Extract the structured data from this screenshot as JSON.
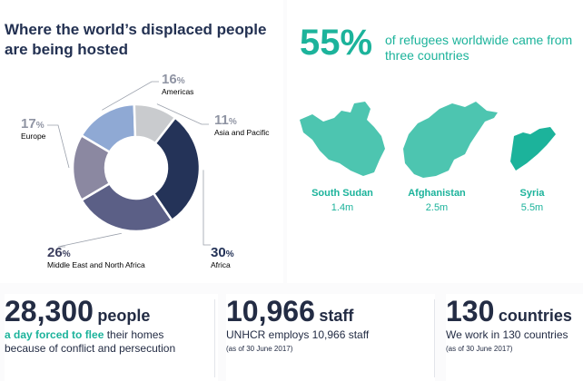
{
  "title": "Where the world’s displaced people are being hosted",
  "chart_data": {
    "type": "pie",
    "values": [
      {
        "pct": "16",
        "label": "Americas",
        "value": 16,
        "color": "#8fa9d4"
      },
      {
        "pct": "11",
        "label": "Asia and Pacific",
        "value": 11,
        "color": "#c9cbce"
      },
      {
        "pct": "30",
        "label": "Africa",
        "value": 30,
        "color": "#243358"
      },
      {
        "pct": "26",
        "label": "Middle East and North Africa",
        "value": 26,
        "color": "#5b5f86"
      },
      {
        "pct": "17",
        "label": "Europe",
        "value": 17,
        "color": "#8b88a1"
      }
    ],
    "pct_sign": "%"
  },
  "refugees": {
    "percent": "55%",
    "text": "of refugees worldwide came from three countries",
    "countries": [
      {
        "name": "South Sudan",
        "value": "1.4m"
      },
      {
        "name": "Afghanistan",
        "value": "2.5m"
      },
      {
        "name": "Syria",
        "value": "5.5m"
      }
    ],
    "color": "#1cb39b"
  },
  "stats": [
    {
      "number": "28,300",
      "unit": "people",
      "highlight": "a day forced to flee",
      "line1_rest": " their homes",
      "line2": "because of conflict and persecution",
      "note": ""
    },
    {
      "number": "10,966",
      "unit": "staff",
      "highlight": "",
      "line1_rest": "UNHCR employs 10,966 staff",
      "line2": "",
      "note": "(as of 30 June 2017)"
    },
    {
      "number": "130",
      "unit": "countries",
      "highlight": "",
      "line1_rest": "We work in 130 countries",
      "line2": "",
      "note": "(as of 30 June 2017)"
    }
  ]
}
